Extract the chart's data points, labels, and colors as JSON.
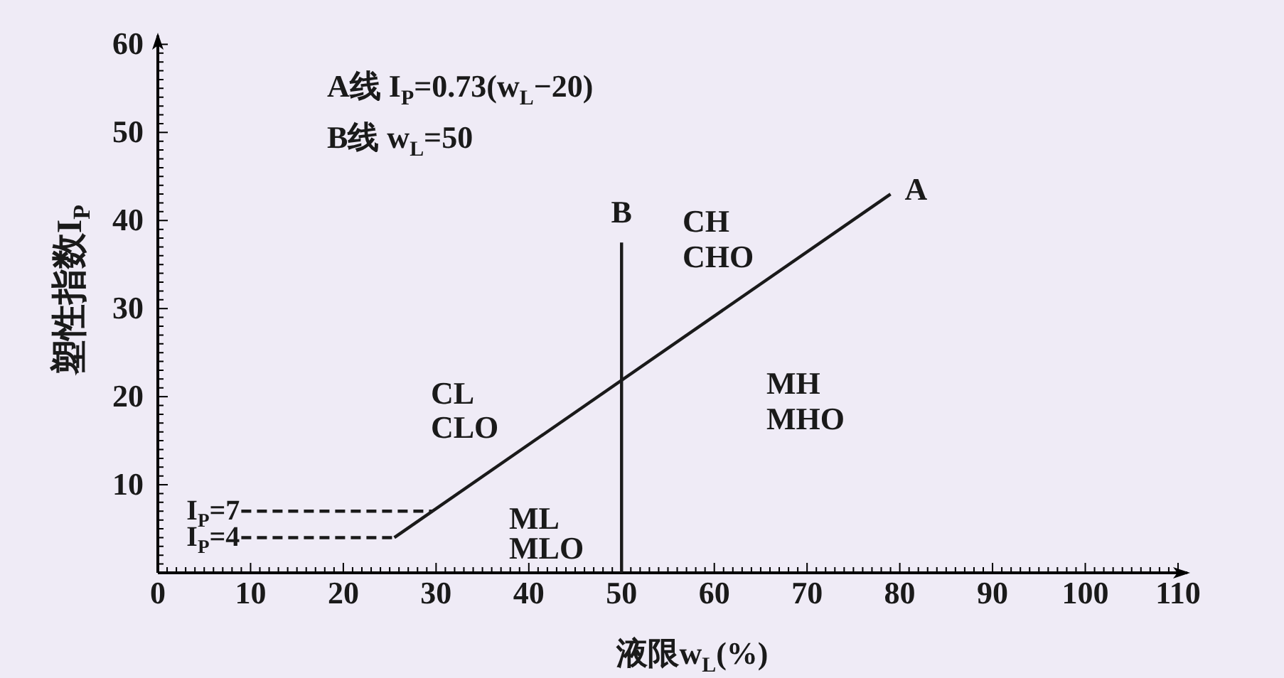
{
  "chart_data": {
    "type": "line",
    "xlabel": "液限w$_{L}$(%)",
    "ylabel": "塑性指数I$_{P}$",
    "xlim": [
      0,
      111
    ],
    "ylim": [
      0,
      61
    ],
    "xticks": [
      0,
      {
        "value": 1,
        "label": null
      },
      {
        "value": 2,
        "label": null
      },
      {
        "value": 3,
        "label": null
      },
      {
        "value": 4,
        "label": null
      },
      {
        "value": 5,
        "label": null
      },
      {
        "value": 6,
        "label": null
      },
      {
        "value": 7,
        "label": null
      },
      {
        "value": 8,
        "label": null
      },
      {
        "value": 9,
        "label": null
      },
      10,
      {
        "value": 11,
        "label": null
      },
      {
        "value": 12,
        "label": null
      },
      {
        "value": 13,
        "label": null
      },
      {
        "value": 14,
        "label": null
      },
      {
        "value": 15,
        "label": null
      },
      {
        "value": 16,
        "label": null
      },
      {
        "value": 17,
        "label": null
      },
      {
        "value": 18,
        "label": null
      },
      {
        "value": 19,
        "label": null
      },
      20,
      {
        "value": 21,
        "label": null
      },
      {
        "value": 22,
        "label": null
      },
      {
        "value": 23,
        "label": null
      },
      {
        "value": 24,
        "label": null
      },
      {
        "value": 25,
        "label": null
      },
      {
        "value": 26,
        "label": null
      },
      {
        "value": 27,
        "label": null
      },
      {
        "value": 28,
        "label": null
      },
      {
        "value": 29,
        "label": null
      },
      30,
      {
        "value": 31,
        "label": null
      },
      {
        "value": 32,
        "label": null
      },
      {
        "value": 33,
        "label": null
      },
      {
        "value": 34,
        "label": null
      },
      {
        "value": 35,
        "label": null
      },
      {
        "value": 36,
        "label": null
      },
      {
        "value": 37,
        "label": null
      },
      {
        "value": 38,
        "label": null
      },
      {
        "value": 39,
        "label": null
      },
      40,
      {
        "value": 41,
        "label": null
      },
      {
        "value": 42,
        "label": null
      },
      {
        "value": 43,
        "label": null
      },
      {
        "value": 44,
        "label": null
      },
      {
        "value": 45,
        "label": null
      },
      {
        "value": 46,
        "label": null
      },
      {
        "value": 47,
        "label": null
      },
      {
        "value": 48,
        "label": null
      },
      {
        "value": 49,
        "label": null
      },
      50,
      {
        "value": 51,
        "label": null
      },
      {
        "value": 52,
        "label": null
      },
      {
        "value": 53,
        "label": null
      },
      {
        "value": 54,
        "label": null
      },
      {
        "value": 55,
        "label": null
      },
      {
        "value": 56,
        "label": null
      },
      {
        "value": 57,
        "label": null
      },
      {
        "value": 58,
        "label": null
      },
      {
        "value": 59,
        "label": null
      },
      60,
      {
        "value": 61,
        "label": null
      },
      {
        "value": 62,
        "label": null
      },
      {
        "value": 63,
        "label": null
      },
      {
        "value": 64,
        "label": null
      },
      {
        "value": 65,
        "label": null
      },
      {
        "value": 66,
        "label": null
      },
      {
        "value": 67,
        "label": null
      },
      {
        "value": 68,
        "label": null
      },
      {
        "value": 69,
        "label": null
      },
      70,
      {
        "value": 71,
        "label": null
      },
      {
        "value": 72,
        "label": null
      },
      {
        "value": 73,
        "label": null
      },
      {
        "value": 74,
        "label": null
      },
      {
        "value": 75,
        "label": null
      },
      {
        "value": 76,
        "label": null
      },
      {
        "value": 77,
        "label": null
      },
      {
        "value": 78,
        "label": null
      },
      {
        "value": 79,
        "label": null
      },
      80,
      {
        "value": 81,
        "label": null
      },
      {
        "value": 82,
        "label": null
      },
      {
        "value": 83,
        "label": null
      },
      {
        "value": 84,
        "label": null
      },
      {
        "value": 85,
        "label": null
      },
      {
        "value": 86,
        "label": null
      },
      {
        "value": 87,
        "label": null
      },
      {
        "value": 88,
        "label": null
      },
      {
        "value": 89,
        "label": null
      },
      90,
      {
        "value": 91,
        "label": null
      },
      {
        "value": 92,
        "label": null
      },
      {
        "value": 93,
        "label": null
      },
      {
        "value": 94,
        "label": null
      },
      {
        "value": 95,
        "label": null
      },
      {
        "value": 96,
        "label": null
      },
      {
        "value": 97,
        "label": null
      },
      {
        "value": 98,
        "label": null
      },
      {
        "value": 99,
        "label": null
      },
      100,
      {
        "value": 101,
        "label": null
      },
      {
        "value": 102,
        "label": null
      },
      {
        "value": 103,
        "label": null
      },
      {
        "value": 104,
        "label": null
      },
      {
        "value": 105,
        "label": null
      },
      {
        "value": 106,
        "label": null
      },
      {
        "value": 107,
        "label": null
      },
      {
        "value": 108,
        "label": null
      },
      {
        "value": 109,
        "label": null
      },
      110
    ],
    "yticks": [
      {
        "value": 1,
        "label": null
      },
      {
        "value": 2,
        "label": null
      },
      {
        "value": 3,
        "label": null
      },
      {
        "value": 4,
        "label": null
      },
      {
        "value": 5,
        "label": null
      },
      {
        "value": 6,
        "label": null
      },
      {
        "value": 7,
        "label": null
      },
      {
        "value": 8,
        "label": null
      },
      {
        "value": 9,
        "label": null
      },
      10,
      {
        "value": 11,
        "label": null
      },
      {
        "value": 12,
        "label": null
      },
      {
        "value": 13,
        "label": null
      },
      {
        "value": 14,
        "label": null
      },
      {
        "value": 15,
        "label": null
      },
      {
        "value": 16,
        "label": null
      },
      {
        "value": 17,
        "label": null
      },
      {
        "value": 18,
        "label": null
      },
      {
        "value": 19,
        "label": null
      },
      20,
      {
        "value": 21,
        "label": null
      },
      {
        "value": 22,
        "label": null
      },
      {
        "value": 23,
        "label": null
      },
      {
        "value": 24,
        "label": null
      },
      {
        "value": 25,
        "label": null
      },
      {
        "value": 26,
        "label": null
      },
      {
        "value": 27,
        "label": null
      },
      {
        "value": 28,
        "label": null
      },
      {
        "value": 29,
        "label": null
      },
      30,
      {
        "value": 31,
        "label": null
      },
      {
        "value": 32,
        "label": null
      },
      {
        "value": 33,
        "label": null
      },
      {
        "value": 34,
        "label": null
      },
      {
        "value": 35,
        "label": null
      },
      {
        "value": 36,
        "label": null
      },
      {
        "value": 37,
        "label": null
      },
      {
        "value": 38,
        "label": null
      },
      {
        "value": 39,
        "label": null
      },
      40,
      {
        "value": 41,
        "label": null
      },
      {
        "value": 42,
        "label": null
      },
      {
        "value": 43,
        "label": null
      },
      {
        "value": 44,
        "label": null
      },
      {
        "value": 45,
        "label": null
      },
      {
        "value": 46,
        "label": null
      },
      {
        "value": 47,
        "label": null
      },
      {
        "value": 48,
        "label": null
      },
      {
        "value": 49,
        "label": null
      },
      50,
      {
        "value": 51,
        "label": null
      },
      {
        "value": 52,
        "label": null
      },
      {
        "value": 53,
        "label": null
      },
      {
        "value": 54,
        "label": null
      },
      {
        "value": 55,
        "label": null
      },
      {
        "value": 56,
        "label": null
      },
      {
        "value": 57,
        "label": null
      },
      {
        "value": 58,
        "label": null
      },
      {
        "value": 59,
        "label": null
      },
      60
    ],
    "series": [
      {
        "name": "A",
        "color": "#1a1a1a",
        "x": [
          25.5,
          79
        ],
        "values": [
          4,
          43
        ]
      },
      {
        "name": "B",
        "color": "#1a1a1a",
        "x": [
          50,
          50
        ],
        "values": [
          0,
          37.5
        ]
      },
      {
        "color": "#1a1a1a",
        "x": [
          9,
          29.6
        ],
        "values": [
          7,
          7
        ],
        "line_style": "dashed"
      },
      {
        "color": "#1a1a1a",
        "x": [
          9,
          25.5
        ],
        "values": [
          4,
          4
        ],
        "line_style": "dashed"
      }
    ],
    "annotations": [
      "A线 I$_{P}$=0.73(w$_{L}$−20)",
      "B线 w$_{L}$=50",
      "CL",
      "CLO",
      "ML",
      "MLO",
      "CH",
      "CHO",
      "MH",
      "MHO",
      {
        "text": "I$_{P}$=7",
        "x": 9,
        "y": 7
      },
      {
        "text": "I$_{P}$=4",
        "x": 9,
        "y": 4
      }
    ]
  }
}
